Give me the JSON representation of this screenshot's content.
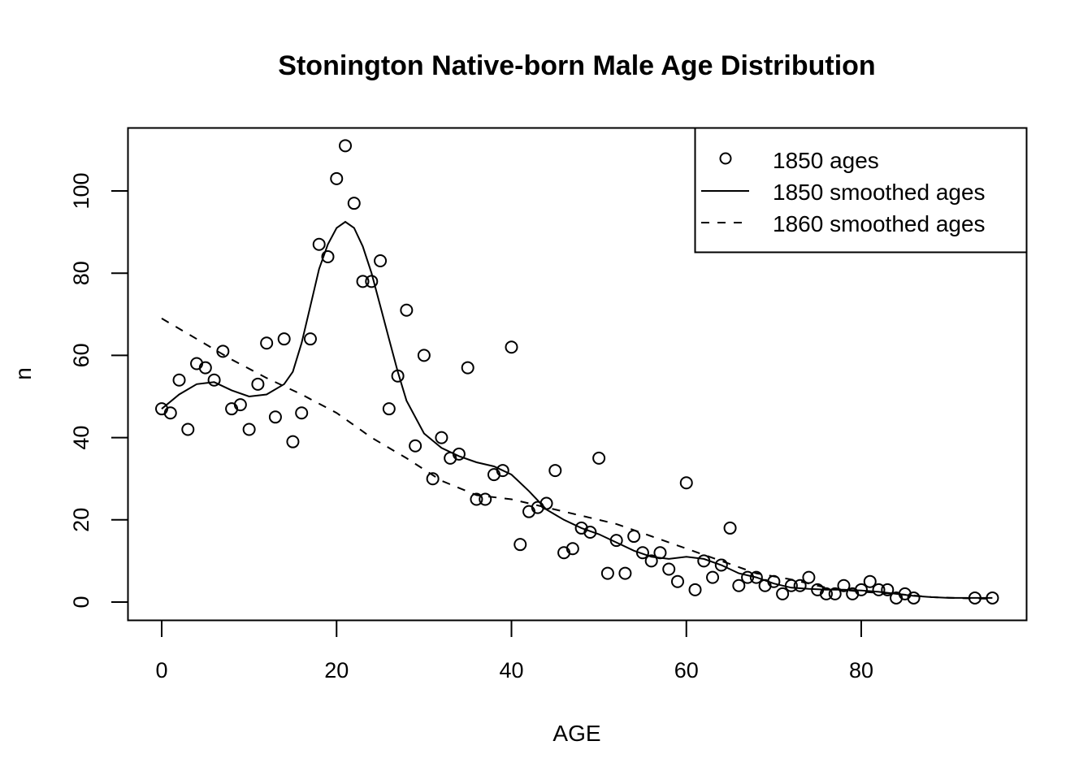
{
  "chart_data": {
    "type": "scatter",
    "title": "Stonington Native-born Male Age Distribution",
    "xlabel": "AGE",
    "ylabel": "n",
    "xlim": [
      -4,
      99
    ],
    "ylim": [
      -4.5,
      115
    ],
    "xticks": [
      0,
      20,
      40,
      60,
      80
    ],
    "yticks": [
      0,
      20,
      40,
      60,
      80,
      100
    ],
    "grid": false,
    "legend": {
      "position": "top-right",
      "entries": [
        {
          "label": "1850 ages",
          "style": "circle"
        },
        {
          "label": "1850 smoothed ages",
          "style": "solid"
        },
        {
          "label": "1860 smoothed ages",
          "style": "dashed"
        }
      ]
    },
    "series": [
      {
        "name": "1850 ages",
        "kind": "points",
        "x": [
          0,
          1,
          2,
          3,
          4,
          5,
          6,
          7,
          8,
          9,
          10,
          11,
          12,
          13,
          14,
          15,
          16,
          17,
          18,
          19,
          20,
          21,
          22,
          23,
          24,
          25,
          26,
          27,
          28,
          29,
          30,
          31,
          32,
          33,
          34,
          35,
          36,
          37,
          38,
          39,
          40,
          41,
          42,
          43,
          44,
          45,
          46,
          47,
          48,
          49,
          50,
          51,
          52,
          53,
          54,
          55,
          56,
          57,
          58,
          59,
          60,
          61,
          62,
          63,
          64,
          65,
          66,
          67,
          68,
          69,
          70,
          71,
          72,
          73,
          74,
          75,
          76,
          77,
          78,
          79,
          80,
          81,
          82,
          83,
          84,
          85,
          86,
          93,
          95
        ],
        "y": [
          47,
          46,
          54,
          42,
          58,
          57,
          54,
          61,
          47,
          48,
          42,
          53,
          63,
          45,
          64,
          39,
          46,
          64,
          87,
          84,
          103,
          111,
          97,
          78,
          78,
          83,
          47,
          55,
          71,
          38,
          60,
          30,
          40,
          35,
          36,
          57,
          25,
          25,
          31,
          32,
          62,
          14,
          22,
          23,
          24,
          32,
          12,
          13,
          18,
          17,
          35,
          7,
          15,
          7,
          16,
          12,
          10,
          12,
          8,
          5,
          29,
          3,
          10,
          6,
          9,
          18,
          4,
          6,
          6,
          4,
          5,
          2,
          4,
          4,
          6,
          3,
          2,
          2,
          4,
          2,
          3,
          5,
          3,
          3,
          1,
          2,
          1,
          1,
          1
        ]
      },
      {
        "name": "1850 smoothed ages",
        "kind": "line-solid",
        "x": [
          0,
          2,
          4,
          6,
          8,
          10,
          12,
          14,
          15,
          16,
          17,
          18,
          19,
          20,
          21,
          22,
          23,
          24,
          25,
          26,
          27,
          28,
          30,
          32,
          34,
          36,
          38,
          40,
          42,
          44,
          46,
          48,
          50,
          52,
          54,
          56,
          58,
          60,
          62,
          64,
          66,
          68,
          70,
          72,
          74,
          76,
          78,
          80,
          82,
          84,
          86,
          88,
          90,
          93,
          95
        ],
        "y": [
          47,
          50.5,
          53,
          53.5,
          51.5,
          50,
          50.5,
          53,
          56,
          63,
          72,
          81,
          87,
          91,
          92.5,
          91,
          86.5,
          80,
          72,
          64,
          56,
          49,
          41,
          37.5,
          35.5,
          34,
          33,
          31,
          27,
          22.5,
          20,
          18,
          16.5,
          14.5,
          12.5,
          11,
          10.5,
          11,
          10.5,
          9,
          7,
          6,
          4.5,
          3.5,
          3.2,
          3,
          3,
          2.8,
          2.5,
          2,
          1.5,
          1.2,
          1,
          1,
          1
        ]
      },
      {
        "name": "1860 smoothed ages",
        "kind": "line-dashed",
        "x": [
          0,
          4,
          8,
          12,
          16,
          20,
          24,
          28,
          32,
          36,
          40,
          44,
          48,
          52,
          56,
          60,
          64,
          68,
          72,
          76,
          80,
          84,
          88,
          92,
          95
        ],
        "y": [
          69,
          64,
          59,
          54.5,
          50.5,
          46,
          40,
          35,
          29.5,
          26,
          25,
          23,
          21,
          19,
          16,
          13,
          10,
          7,
          5.5,
          3.5,
          2.5,
          2,
          1.2,
          0.9,
          0.8
        ]
      }
    ]
  }
}
